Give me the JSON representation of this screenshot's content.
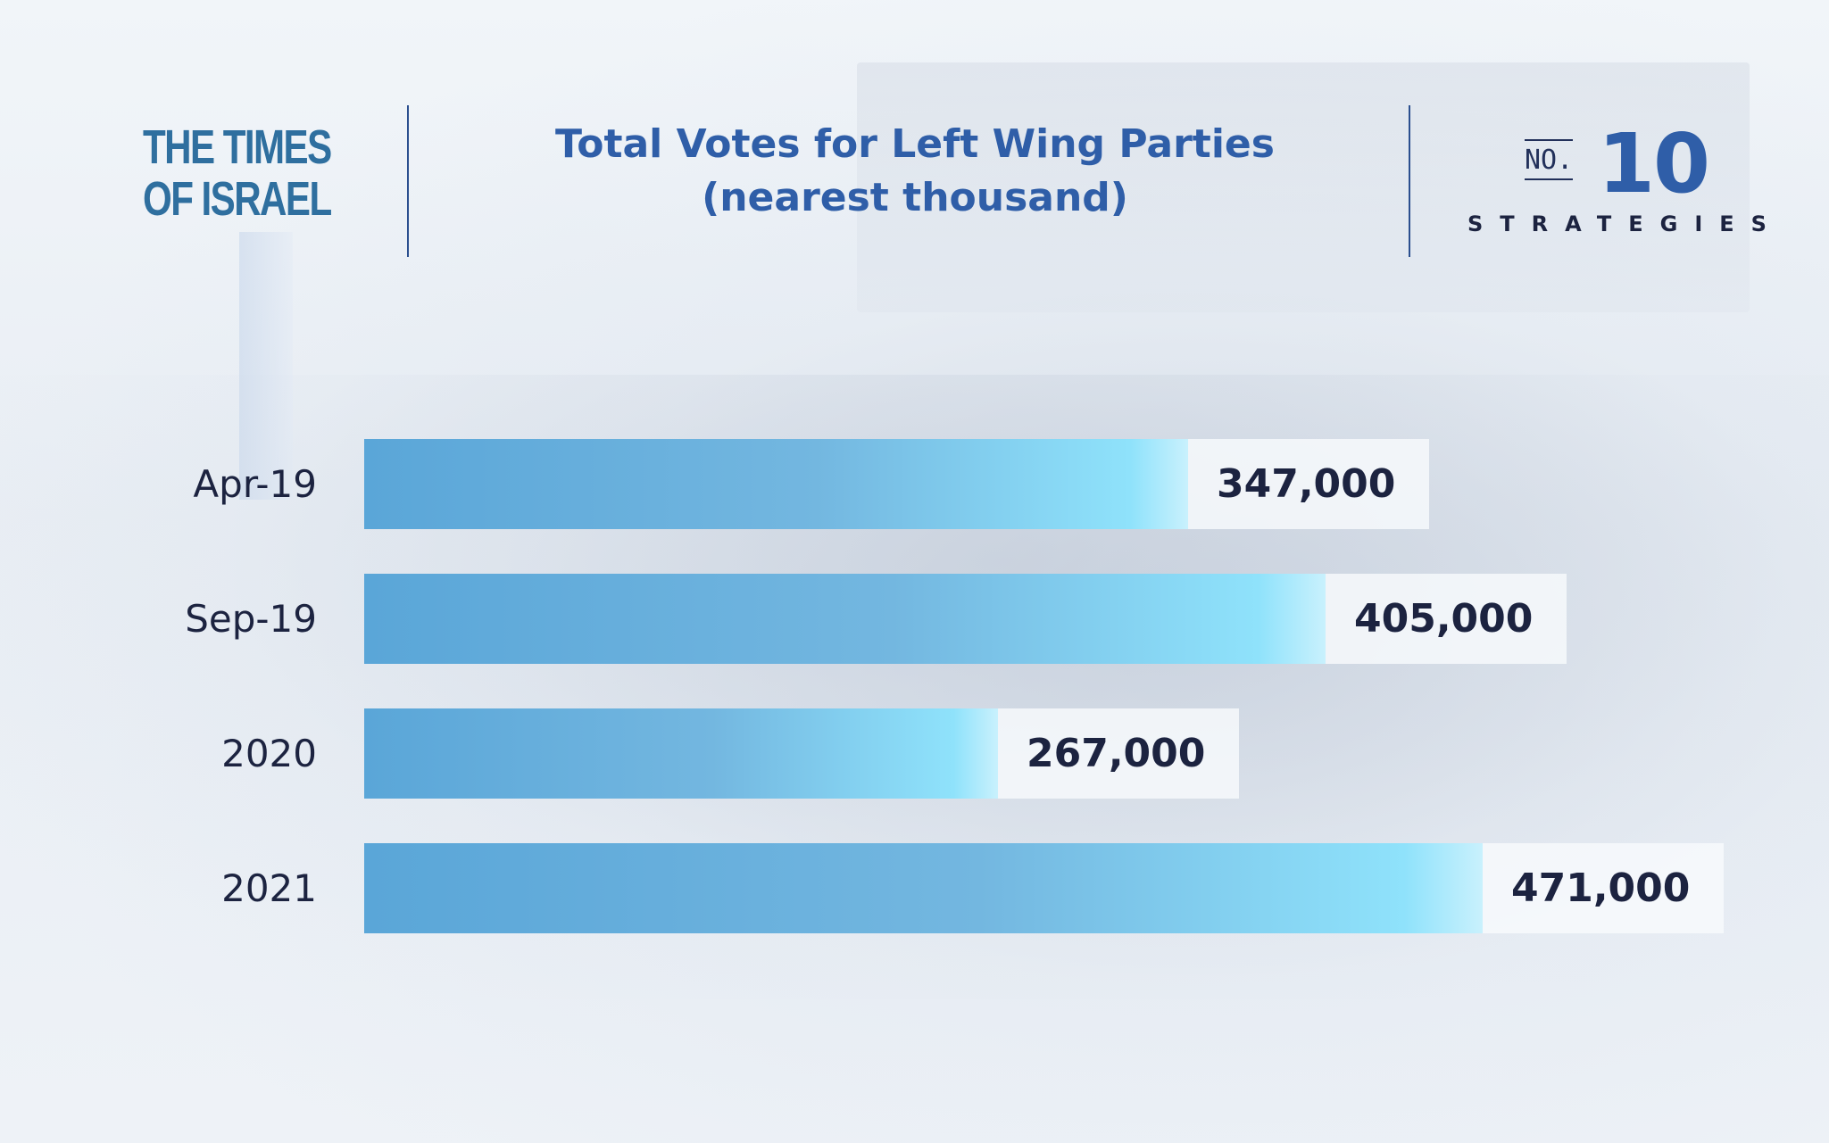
{
  "header": {
    "logo_line1": "THE TIMES",
    "logo_line2": "OF ISRAEL",
    "title_line1": "Total Votes for Left Wing Parties",
    "title_line2": "(nearest thousand)",
    "brand_no": "NO.",
    "brand_number": "10",
    "brand_sub": "STRATEGIES"
  },
  "colors": {
    "title": "#2f5ea8",
    "bar_start": "#5aa6d8",
    "bar_end": "#8fe2fb",
    "category_text": "#1c2340",
    "value_text": "#1c2340"
  },
  "chart_data": {
    "type": "bar",
    "orientation": "horizontal",
    "title": "Total Votes for Left Wing Parties (nearest thousand)",
    "categories": [
      "Apr-19",
      "Sep-19",
      "2020",
      "2021"
    ],
    "values": [
      347000,
      405000,
      267000,
      471000
    ],
    "value_labels": [
      "347,000",
      "405,000",
      "267,000",
      "471,000"
    ],
    "xlim": [
      0,
      471000
    ],
    "grid": false,
    "legend": "none"
  }
}
